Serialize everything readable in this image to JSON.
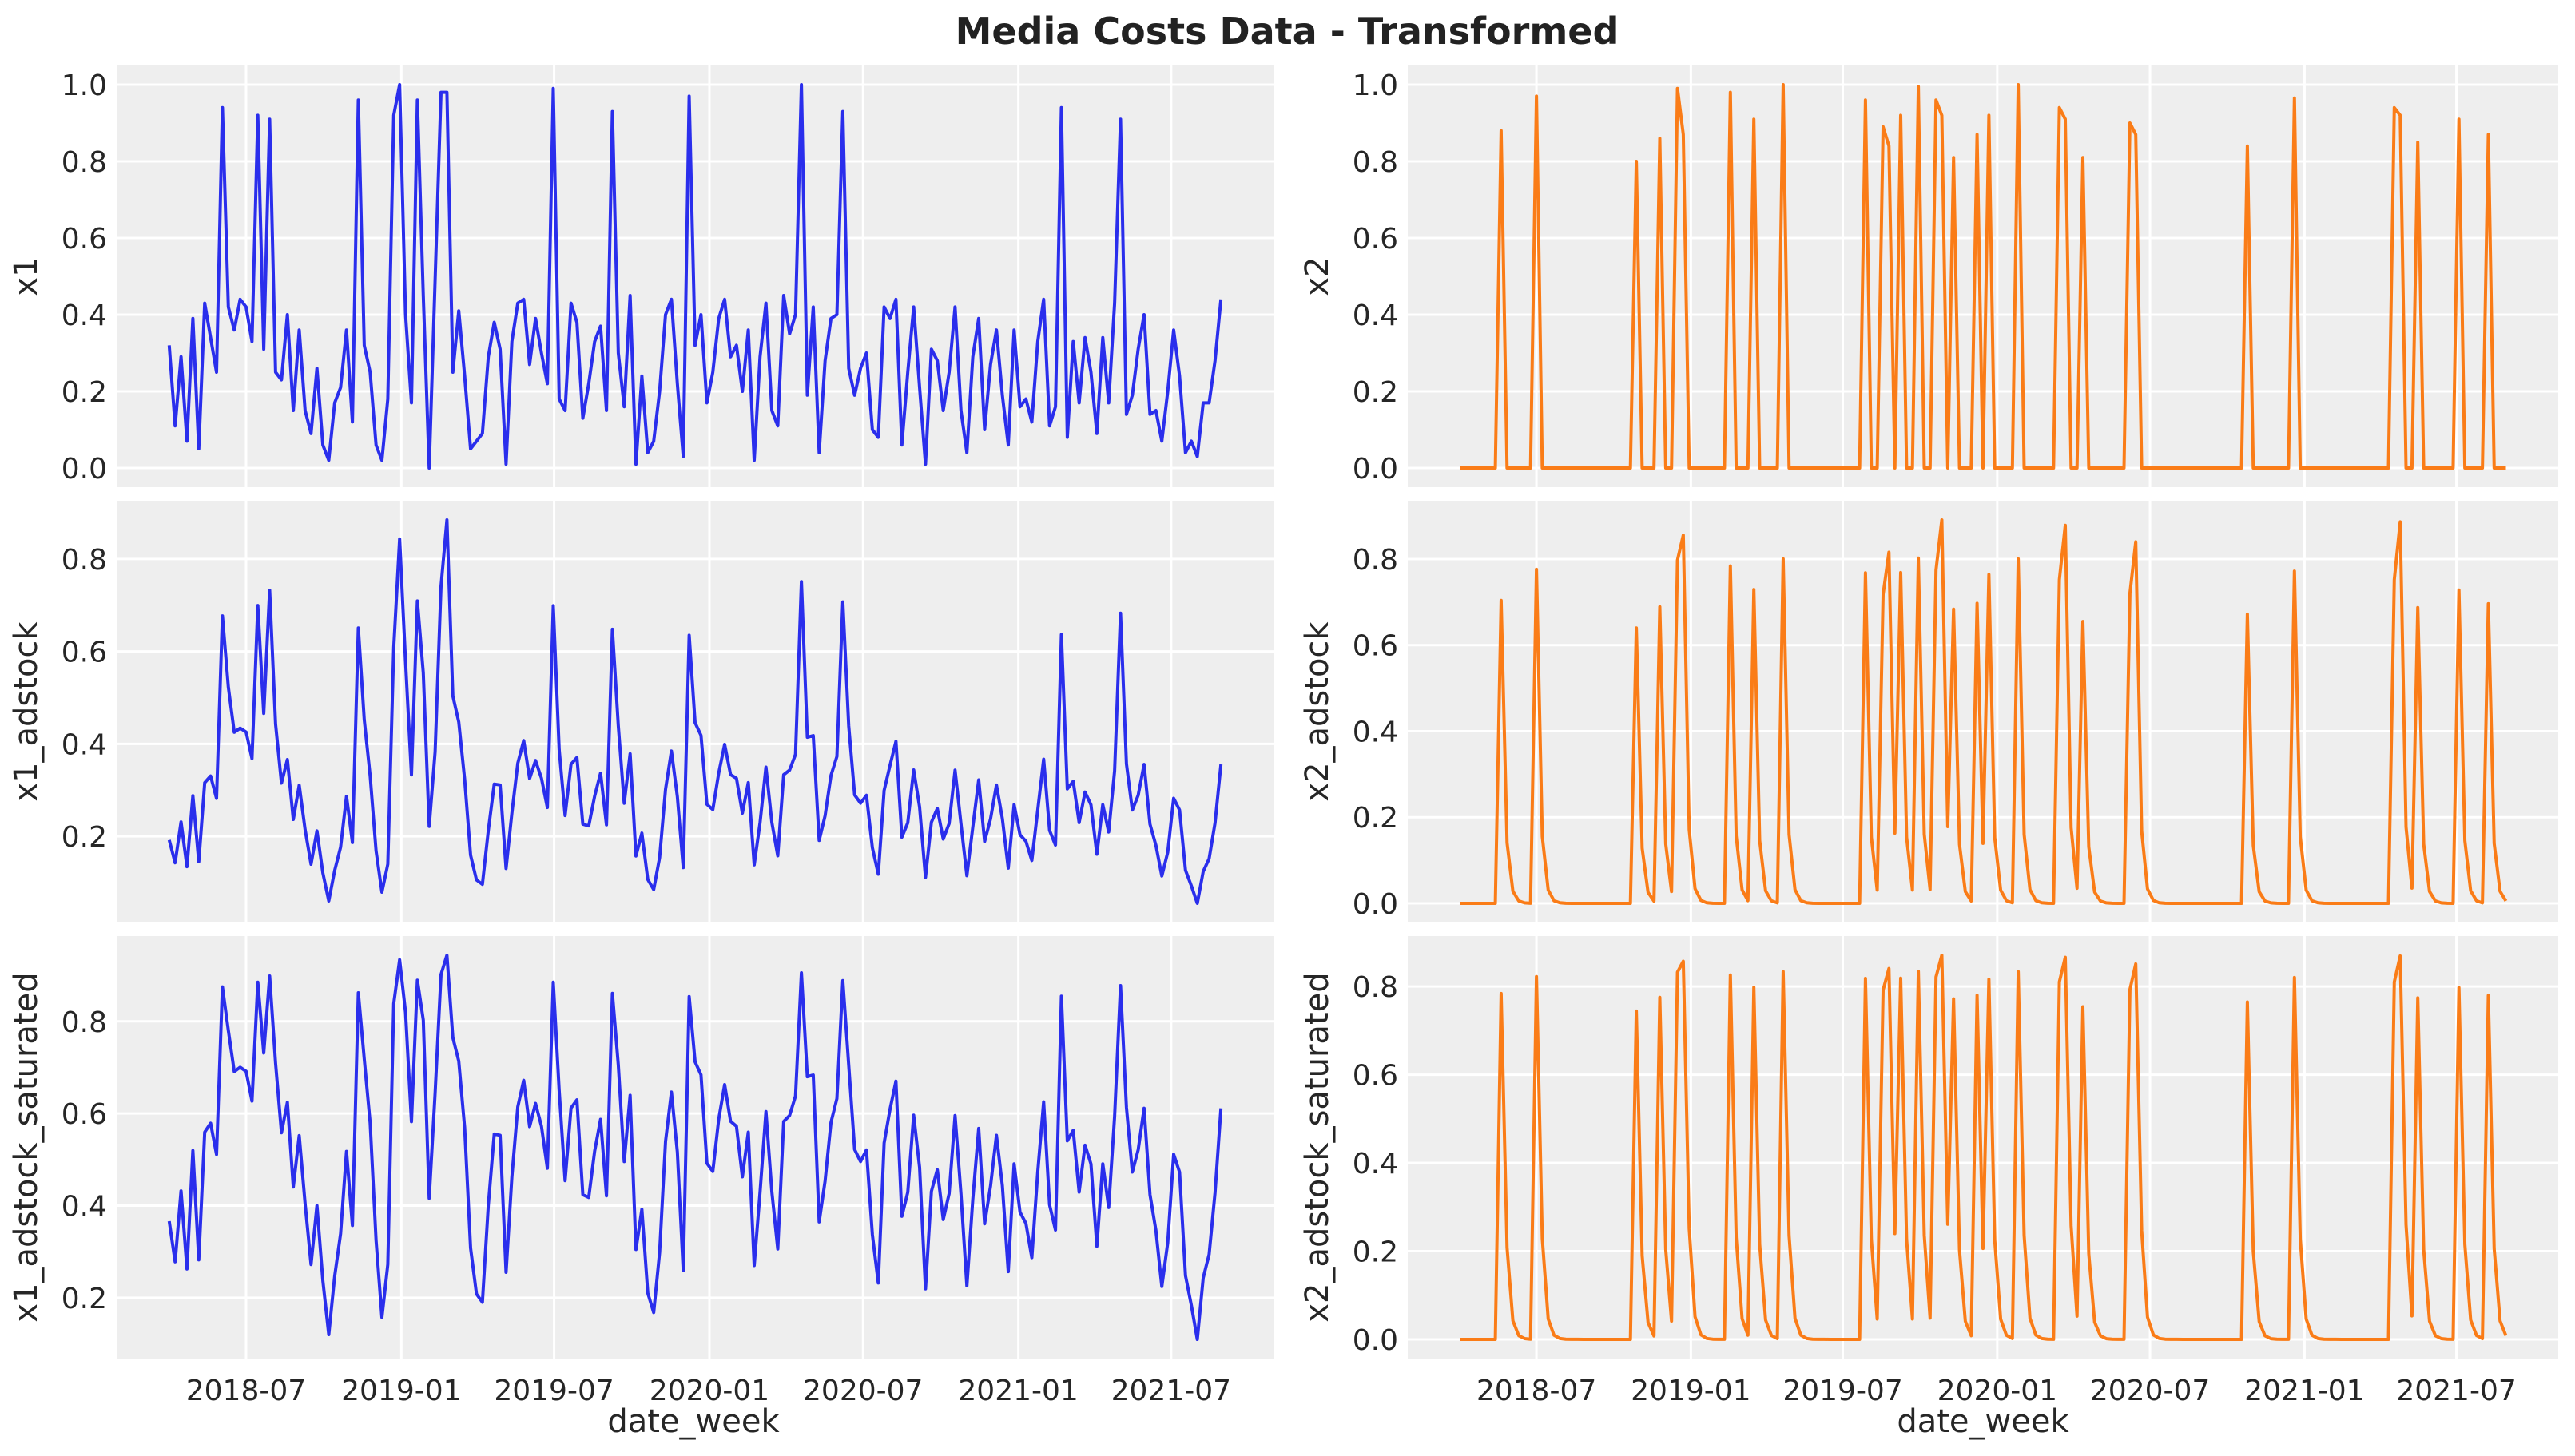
{
  "chart_data": {
    "title": "Media Costs Data - Transformed",
    "type": "line",
    "layout": "3 rows x 2 columns, shared x axis",
    "grid": true,
    "background": "#eeeeee",
    "x": {
      "label": "date_week",
      "start": "2018-04-01",
      "frequency": "weekly",
      "count": 179,
      "tick_labels": [
        "2018-07",
        "2019-01",
        "2019-07",
        "2020-01",
        "2020-07",
        "2021-01",
        "2021-07"
      ],
      "tick_dates": [
        "2018-07-01",
        "2019-01-01",
        "2019-07-01",
        "2020-01-01",
        "2020-07-01",
        "2021-01-01",
        "2021-07-01"
      ]
    },
    "colors": {
      "x1": "#2a2eec",
      "x2": "#fa7c17"
    },
    "series": {
      "x1": [
        0.32,
        0.11,
        0.29,
        0.07,
        0.39,
        0.05,
        0.43,
        0.34,
        0.25,
        0.94,
        0.42,
        0.36,
        0.44,
        0.42,
        0.33,
        0.92,
        0.31,
        0.91,
        0.25,
        0.23,
        0.4,
        0.15,
        0.36,
        0.15,
        0.09,
        0.26,
        0.06,
        0.02,
        0.17,
        0.21,
        0.36,
        0.12,
        0.96,
        0.32,
        0.25,
        0.06,
        0.02,
        0.18,
        0.92,
        1.0,
        0.4,
        0.17,
        0.96,
        0.45,
        0.0,
        0.49,
        0.98,
        0.98,
        0.25,
        0.41,
        0.24,
        0.05,
        0.07,
        0.09,
        0.29,
        0.38,
        0.31,
        0.01,
        0.33,
        0.43,
        0.44,
        0.27,
        0.39,
        0.3,
        0.22,
        0.99,
        0.18,
        0.15,
        0.43,
        0.38,
        0.13,
        0.22,
        0.33,
        0.37,
        0.15,
        0.93,
        0.3,
        0.16,
        0.45,
        0.01,
        0.24,
        0.04,
        0.07,
        0.2,
        0.4,
        0.44,
        0.22,
        0.03,
        0.97,
        0.32,
        0.4,
        0.17,
        0.25,
        0.39,
        0.44,
        0.29,
        0.32,
        0.2,
        0.36,
        0.02,
        0.29,
        0.43,
        0.15,
        0.11,
        0.45,
        0.35,
        0.4,
        1.0,
        0.19,
        0.42,
        0.04,
        0.28,
        0.39,
        0.4,
        0.93,
        0.26,
        0.19,
        0.26,
        0.3,
        0.1,
        0.08,
        0.42,
        0.39,
        0.44,
        0.06,
        0.25,
        0.42,
        0.21,
        0.01,
        0.31,
        0.28,
        0.15,
        0.25,
        0.42,
        0.15,
        0.04,
        0.29,
        0.39,
        0.1,
        0.27,
        0.36,
        0.19,
        0.06,
        0.36,
        0.16,
        0.18,
        0.12,
        0.33,
        0.44,
        0.11,
        0.16,
        0.94,
        0.08,
        0.33,
        0.17,
        0.34,
        0.25,
        0.09,
        0.34,
        0.17,
        0.43,
        0.91,
        0.14,
        0.19,
        0.31,
        0.4,
        0.14,
        0.15,
        0.07,
        0.2,
        0.36,
        0.24,
        0.04,
        0.07,
        0.03,
        0.17,
        0.17,
        0.28,
        0.44
      ],
      "x2_nonzero": {
        "7": 0.88,
        "13": 0.97,
        "30": 0.8,
        "34": 0.86,
        "37": 0.99,
        "38": 0.87,
        "46": 0.98,
        "50": 0.91,
        "55": 1.0,
        "69": 0.96,
        "72": 0.89,
        "73": 0.84,
        "75": 0.92,
        "78": 0.995,
        "81": 0.96,
        "82": 0.92,
        "84": 0.81,
        "88": 0.87,
        "90": 0.92,
        "95": 1.0,
        "102": 0.94,
        "103": 0.91,
        "106": 0.81,
        "114": 0.9,
        "115": 0.87,
        "134": 0.84,
        "142": 0.965,
        "159": 0.94,
        "160": 0.92,
        "163": 0.85,
        "170": 0.91,
        "175": 0.87
      }
    },
    "panels": [
      {
        "ylabel": "x1",
        "series": "x1",
        "transform": "raw",
        "color": "#2a2eec",
        "yticks": [
          "0.0",
          "0.2",
          "0.4",
          "0.6",
          "0.8",
          "1.0"
        ]
      },
      {
        "ylabel": "x2",
        "series": "x2",
        "transform": "raw",
        "color": "#fa7c17",
        "yticks": [
          "0.0",
          "0.2",
          "0.4",
          "0.6",
          "0.8",
          "1.0"
        ]
      },
      {
        "ylabel": "x1_adstock",
        "series": "x1",
        "transform": "adstock",
        "color": "#2a2eec",
        "yticks": [
          "0.2",
          "0.4",
          "0.6",
          "0.8"
        ]
      },
      {
        "ylabel": "x2_adstock",
        "series": "x2",
        "transform": "adstock",
        "color": "#fa7c17",
        "yticks": [
          "0.0",
          "0.2",
          "0.4",
          "0.6",
          "0.8"
        ]
      },
      {
        "ylabel": "x1_adstock_saturated",
        "series": "x1",
        "transform": "adstock_saturated",
        "color": "#2a2eec",
        "yticks": [
          "0.2",
          "0.4",
          "0.6",
          "0.8"
        ]
      },
      {
        "ylabel": "x2_adstock_saturated",
        "series": "x2",
        "transform": "adstock_saturated",
        "color": "#fa7c17",
        "yticks": [
          "0.0",
          "0.2",
          "0.4",
          "0.6",
          "0.8"
        ]
      }
    ]
  }
}
